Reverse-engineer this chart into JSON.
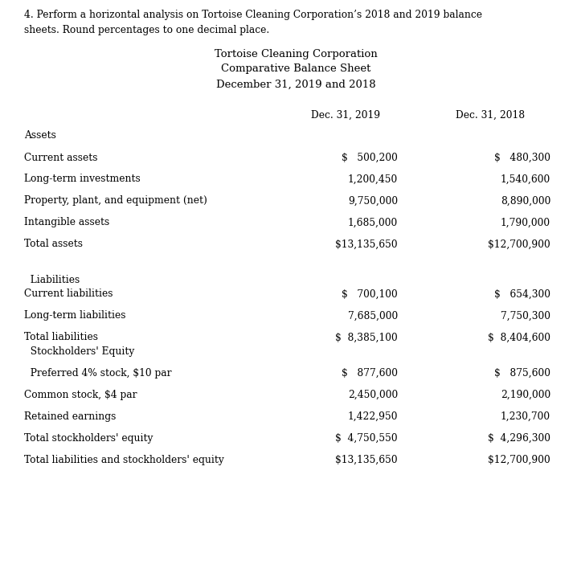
{
  "question_line1": "4. Perform a horizontal analysis on Tortoise Cleaning Corporation’s 2018 and 2019 balance",
  "question_line2": "sheets. Round percentages to one decimal place.",
  "title_line1": "Tortoise Cleaning Corporation",
  "title_line2": "Comparative Balance Sheet",
  "title_line3": "December 31, 2019 and 2018",
  "col_header_1": "Dec. 31, 2019",
  "col_header_2": "Dec. 31, 2018",
  "rows": [
    {
      "label": "Assets",
      "val1": "",
      "val2": "",
      "spacer_after": true,
      "indent": false
    },
    {
      "label": "Current assets",
      "val1": "$   500,200",
      "val2": "$   480,300",
      "spacer_after": true,
      "indent": false
    },
    {
      "label": "Long-term investments",
      "val1": "1,200,450",
      "val2": "1,540,600",
      "spacer_after": true,
      "indent": false
    },
    {
      "label": "Property, plant, and equipment (net)",
      "val1": "9,750,000",
      "val2": "8,890,000",
      "spacer_after": true,
      "indent": false
    },
    {
      "label": "Intangible assets",
      "val1": "1,685,000",
      "val2": "1,790,000",
      "spacer_after": true,
      "indent": false
    },
    {
      "label": "Total assets",
      "val1": "$13,135,650",
      "val2": "$12,700,900",
      "spacer_after": true,
      "indent": false
    },
    {
      "label": "",
      "val1": "",
      "val2": "",
      "spacer_after": false,
      "indent": false
    },
    {
      "label": "  Liabilities",
      "val1": "",
      "val2": "",
      "spacer_after": false,
      "indent": false
    },
    {
      "label": "Current liabilities",
      "val1": "$   700,100",
      "val2": "$   654,300",
      "spacer_after": true,
      "indent": false
    },
    {
      "label": "Long-term liabilities",
      "val1": "7,685,000",
      "val2": "7,750,300",
      "spacer_after": true,
      "indent": false
    },
    {
      "label": "Total liabilities",
      "val1": "$  8,385,100",
      "val2": "$  8,404,600",
      "spacer_after": false,
      "indent": false
    },
    {
      "label": "  Stockholders' Equity",
      "val1": "",
      "val2": "",
      "spacer_after": true,
      "indent": false
    },
    {
      "label": "  Preferred 4% stock, $10 par",
      "val1": "$   877,600",
      "val2": "$   875,600",
      "spacer_after": true,
      "indent": false
    },
    {
      "label": "Common stock, $4 par",
      "val1": "2,450,000",
      "val2": "2,190,000",
      "spacer_after": true,
      "indent": false
    },
    {
      "label": "Retained earnings",
      "val1": "1,422,950",
      "val2": "1,230,700",
      "spacer_after": true,
      "indent": false
    },
    {
      "label": "Total stockholders' equity",
      "val1": "$  4,750,550",
      "val2": "$  4,296,300",
      "spacer_after": true,
      "indent": false
    },
    {
      "label": "Total liabilities and stockholders' equity",
      "val1": "$13,135,650",
      "val2": "$12,700,900",
      "spacer_after": false,
      "indent": false
    }
  ],
  "bg_color": "#ffffff",
  "text_color": "#000000",
  "font_size": 8.8,
  "title_font_size": 9.5,
  "dpi": 100,
  "fig_w": 7.13,
  "fig_h": 7.18
}
